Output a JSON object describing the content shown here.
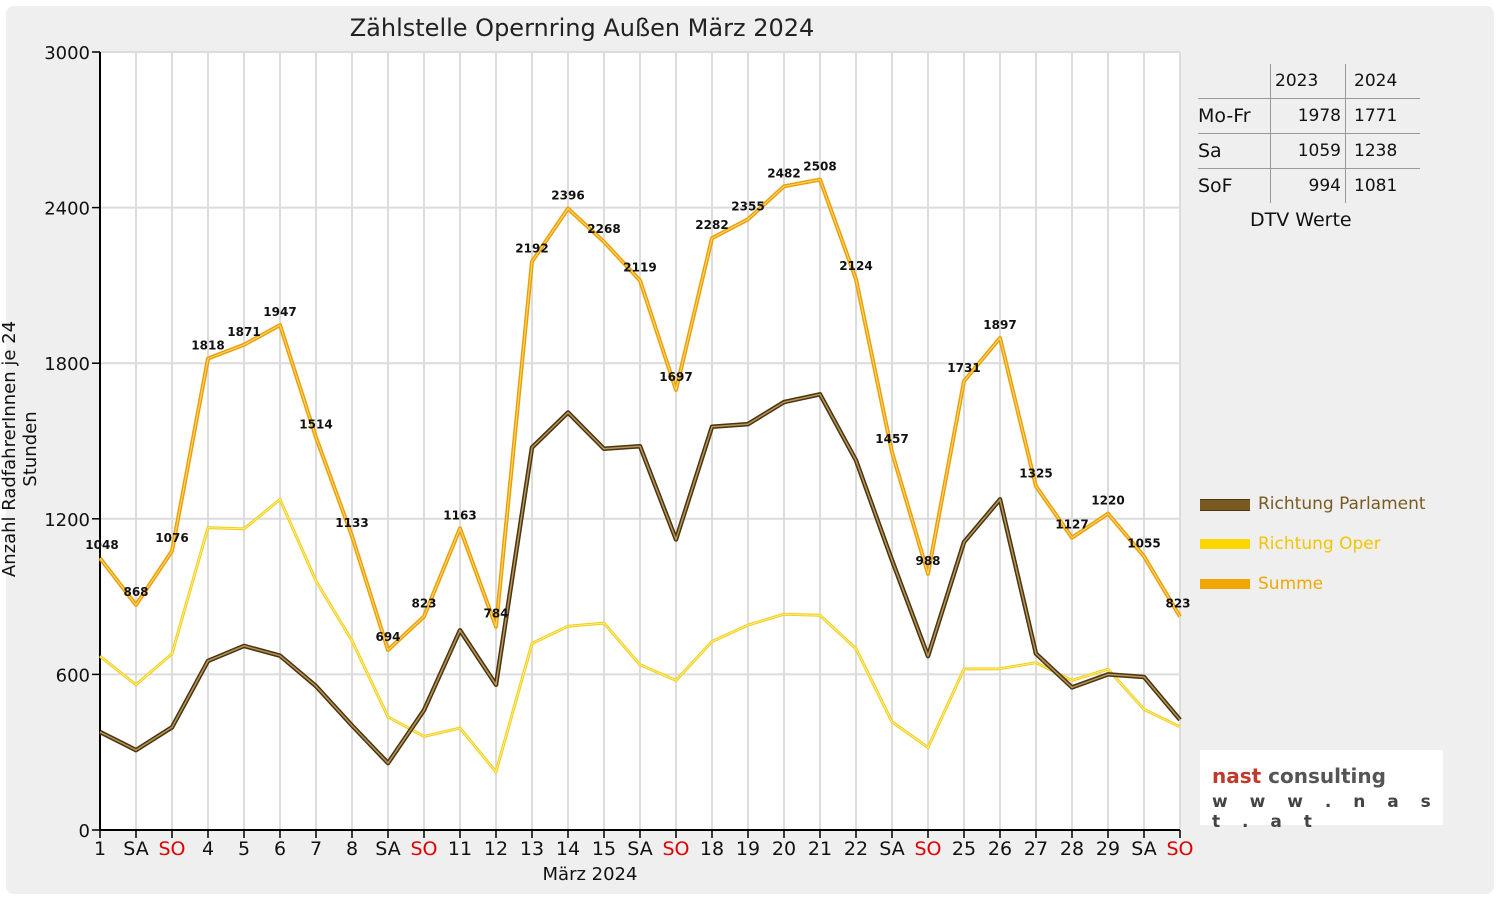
{
  "chart_data": {
    "type": "line",
    "title": "Zählstelle Opernring Außen März 2024",
    "xlabel": "März 2024",
    "ylabel": "Anzahl RadfahrerInnen je 24 Stunden",
    "ylim": [
      0,
      3000
    ],
    "yticks": [
      0,
      600,
      1200,
      1800,
      2400,
      3000
    ],
    "grid": true,
    "legend_position": "right",
    "categories": [
      "1",
      "SA",
      "SO",
      "4",
      "5",
      "6",
      "7",
      "8",
      "SA",
      "SO",
      "11",
      "12",
      "13",
      "14",
      "15",
      "SA",
      "SO",
      "18",
      "19",
      "20",
      "21",
      "22",
      "SA",
      "SO",
      "25",
      "26",
      "27",
      "28",
      "29",
      "SA",
      "SO"
    ],
    "sunday_color": "#e00000",
    "series": [
      {
        "name": "Richtung Parlament",
        "color": "#7a5a20",
        "values": [
          378,
          308,
          396,
          652,
          710,
          672,
          555,
          403,
          258,
          462,
          770,
          560,
          1475,
          1610,
          1470,
          1480,
          1120,
          1555,
          1565,
          1650,
          1680,
          1425,
          1040,
          670,
          1110,
          1275,
          680,
          550,
          600,
          590,
          425
        ]
      },
      {
        "name": "Richtung Oper",
        "color": "#ffd700",
        "values": [
          670,
          560,
          680,
          1166,
          1161,
          1275,
          960,
          730,
          436,
          361,
          393,
          224,
          719,
          786,
          798,
          637,
          577,
          727,
          790,
          832,
          828,
          699,
          417,
          318,
          621,
          622,
          645,
          577,
          620,
          465,
          398
        ]
      },
      {
        "name": "Summe",
        "color": "#f0a800",
        "values": [
          1048,
          868,
          1076,
          1818,
          1871,
          1947,
          1514,
          1133,
          694,
          823,
          1163,
          784,
          2192,
          2396,
          2268,
          2119,
          1697,
          2282,
          2355,
          2482,
          2508,
          2124,
          1457,
          988,
          1731,
          1897,
          1325,
          1127,
          1220,
          1055,
          823
        ]
      }
    ],
    "data_labels": [
      1048,
      868,
      1076,
      1818,
      1871,
      1947,
      1514,
      1133,
      694,
      823,
      1163,
      784,
      2192,
      2396,
      2268,
      2119,
      1697,
      2282,
      2355,
      2482,
      2508,
      2124,
      1457,
      988,
      1731,
      1897,
      1325,
      1127,
      1220,
      1055,
      823
    ]
  },
  "dtv_table": {
    "headers": [
      "2023",
      "2024"
    ],
    "rows": [
      {
        "label": "Mo-Fr",
        "v2023": "1978",
        "v2024": "1771"
      },
      {
        "label": "Sa",
        "v2023": "1059",
        "v2024": "1238"
      },
      {
        "label": "SoF",
        "v2023": "994",
        "v2024": "1081"
      }
    ],
    "caption": "DTV Werte"
  },
  "logo": {
    "brand_1": "nast",
    "brand_2": " consulting",
    "url": "w w w . n a s t . a t"
  }
}
